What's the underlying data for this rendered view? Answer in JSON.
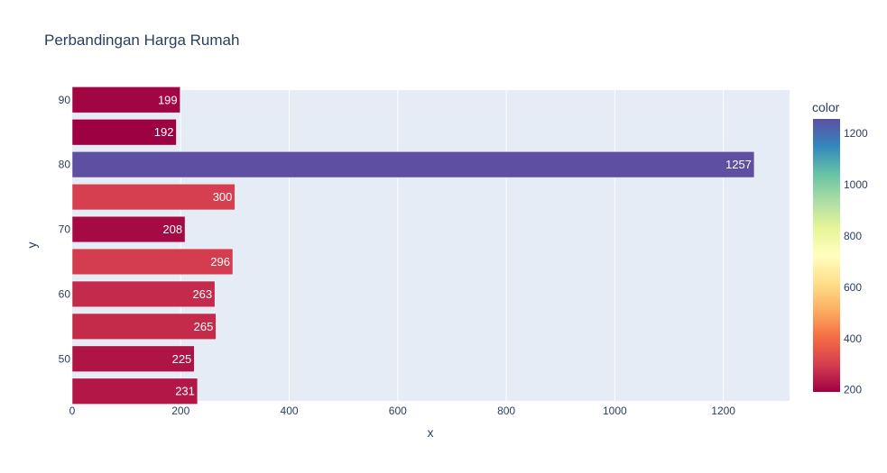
{
  "chart_data": {
    "type": "bar",
    "orientation": "horizontal",
    "title": "Perbandingan Harga Rumah",
    "xlabel": "x",
    "ylabel": "y",
    "xlim": [
      0,
      1322
    ],
    "ylim": [
      43.5,
      91.5
    ],
    "x_ticks": [
      0,
      200,
      400,
      600,
      800,
      1000,
      1200
    ],
    "y_ticks": [
      50,
      60,
      70,
      80,
      90
    ],
    "grid": true,
    "y": [
      45,
      50,
      55,
      60,
      65,
      70,
      75,
      80,
      85,
      90
    ],
    "values": [
      231,
      225,
      265,
      263,
      296,
      208,
      300,
      1257,
      192,
      199
    ],
    "text_labels": [
      "231",
      "225",
      "265",
      "263",
      "296",
      "208",
      "300",
      "1257",
      "192",
      "199"
    ],
    "colorbar": {
      "title": "color",
      "range": [
        192,
        1257
      ],
      "ticks": [
        200,
        400,
        600,
        800,
        1000,
        1200
      ],
      "colorscale": [
        "#9e0142",
        "#d53e4f",
        "#f46d43",
        "#fdae61",
        "#fee08b",
        "#ffffbf",
        "#e6f598",
        "#abdda4",
        "#66c2a5",
        "#3288bd",
        "#5e4fa2"
      ]
    },
    "plot_bgcolor": "#e5ecf6",
    "grid_color": "#ffffff"
  }
}
